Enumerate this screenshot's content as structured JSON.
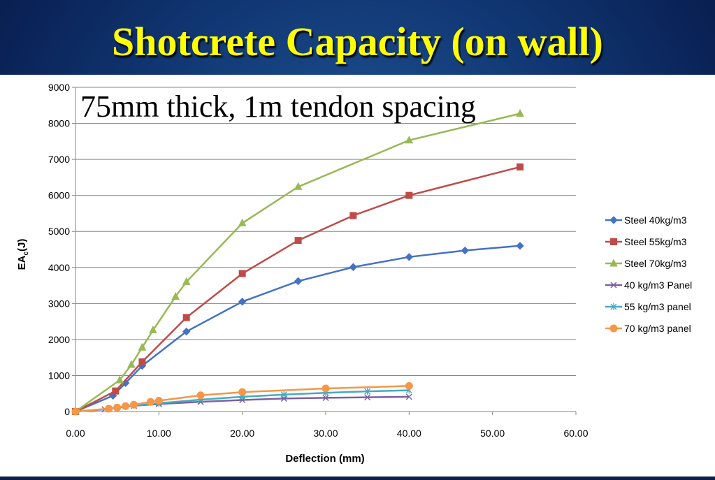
{
  "slide": {
    "title": "Shotcrete Capacity (on wall)"
  },
  "chart_data": {
    "type": "line",
    "annotation": "75mm thick, 1m tendon spacing",
    "xlabel": "Deflection (mm)",
    "ylabel_main": "EA",
    "ylabel_sub": "c",
    "ylabel_unit": "(J)",
    "xlim": [
      0,
      60
    ],
    "ylim": [
      0,
      9000
    ],
    "xticks": [
      0,
      10,
      20,
      30,
      40,
      50,
      60
    ],
    "xtick_labels": [
      "0.00",
      "10.00",
      "20.00",
      "30.00",
      "40.00",
      "50.00",
      "60.00"
    ],
    "yticks": [
      0,
      1000,
      2000,
      3000,
      4000,
      5000,
      6000,
      7000,
      8000,
      9000
    ],
    "ytick_labels": [
      "0",
      "1000",
      "2000",
      "3000",
      "4000",
      "5000",
      "6000",
      "7000",
      "8000",
      "9000"
    ],
    "grid": "horizontal",
    "legend_position": "right",
    "series": [
      {
        "name": "Steel 40kg/m3",
        "color": "#4472c4",
        "marker": "diamond",
        "points": [
          [
            0,
            0
          ],
          [
            4.5,
            440
          ],
          [
            6,
            790
          ],
          [
            8,
            1270
          ],
          [
            13.3,
            2220
          ],
          [
            20,
            3050
          ],
          [
            26.7,
            3620
          ],
          [
            33.3,
            4010
          ],
          [
            40,
            4290
          ],
          [
            46.7,
            4470
          ],
          [
            53.3,
            4600
          ]
        ]
      },
      {
        "name": "Steel 55kg/m3",
        "color": "#be4b48",
        "marker": "square",
        "points": [
          [
            0,
            0
          ],
          [
            4.8,
            570
          ],
          [
            8,
            1380
          ],
          [
            13.3,
            2610
          ],
          [
            20,
            3830
          ],
          [
            26.7,
            4750
          ],
          [
            33.3,
            5440
          ],
          [
            40,
            6000
          ],
          [
            53.3,
            6790
          ]
        ]
      },
      {
        "name": "Steel 70kg/m3",
        "color": "#98b954",
        "marker": "triangle",
        "points": [
          [
            0,
            0
          ],
          [
            5.3,
            870
          ],
          [
            6.7,
            1300
          ],
          [
            8,
            1780
          ],
          [
            9.3,
            2260
          ],
          [
            12,
            3190
          ],
          [
            13.3,
            3600
          ],
          [
            20,
            5230
          ],
          [
            26.7,
            6240
          ],
          [
            40,
            7530
          ],
          [
            53.3,
            8270
          ]
        ]
      },
      {
        "name": "40 kg/m3 Panel",
        "color": "#7d60a0",
        "marker": "x",
        "points": [
          [
            0,
            0
          ],
          [
            3.5,
            60
          ],
          [
            5,
            110
          ],
          [
            7,
            160
          ],
          [
            10,
            210
          ],
          [
            15,
            270
          ],
          [
            20,
            320
          ],
          [
            25,
            360
          ],
          [
            30,
            380
          ],
          [
            35,
            395
          ],
          [
            40,
            410
          ]
        ]
      },
      {
        "name": "55 kg/m3 panel",
        "color": "#46aac5",
        "marker": "star",
        "points": [
          [
            0,
            0
          ],
          [
            4,
            80
          ],
          [
            6,
            140
          ],
          [
            10,
            230
          ],
          [
            15,
            330
          ],
          [
            20,
            410
          ],
          [
            25,
            470
          ],
          [
            30,
            520
          ],
          [
            35,
            560
          ],
          [
            40,
            590
          ]
        ]
      },
      {
        "name": "70 kg/m3 panel",
        "color": "#f79646",
        "marker": "circle",
        "points": [
          [
            0,
            0
          ],
          [
            4,
            80
          ],
          [
            5,
            110
          ],
          [
            6,
            150
          ],
          [
            7,
            190
          ],
          [
            9,
            270
          ],
          [
            10,
            300
          ],
          [
            15,
            450
          ],
          [
            20,
            540
          ],
          [
            30,
            640
          ],
          [
            40,
            710
          ]
        ]
      }
    ]
  }
}
